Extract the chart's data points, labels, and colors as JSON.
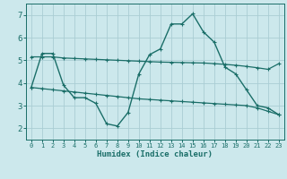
{
  "xlabel": "Humidex (Indice chaleur)",
  "bg_color": "#cce8ec",
  "grid_color": "#aacdd4",
  "line_color": "#1a6e68",
  "xlim": [
    -0.5,
    23.5
  ],
  "ylim": [
    1.5,
    7.5
  ],
  "yticks": [
    2,
    3,
    4,
    5,
    6,
    7
  ],
  "xticks": [
    0,
    1,
    2,
    3,
    4,
    5,
    6,
    7,
    8,
    9,
    10,
    11,
    12,
    13,
    14,
    15,
    16,
    17,
    18,
    19,
    20,
    21,
    22,
    23
  ],
  "line1_x": [
    0,
    1,
    2,
    3,
    4,
    5,
    6,
    7,
    8,
    9,
    10,
    11,
    12,
    13,
    14,
    15,
    16,
    17,
    18,
    19,
    20,
    21,
    22,
    23
  ],
  "line1_y": [
    3.8,
    5.3,
    5.3,
    3.9,
    3.35,
    3.35,
    3.1,
    2.2,
    2.1,
    2.7,
    4.4,
    5.25,
    5.5,
    6.6,
    6.6,
    7.05,
    6.25,
    5.8,
    4.7,
    4.4,
    3.7,
    3.0,
    2.9,
    2.6
  ],
  "line2_x": [
    0,
    1,
    2,
    3,
    4,
    5,
    6,
    7,
    8,
    9,
    10,
    11,
    12,
    13,
    14,
    15,
    16,
    17,
    18,
    19,
    20,
    21,
    22,
    23
  ],
  "line2_y": [
    5.15,
    5.15,
    5.15,
    5.1,
    5.08,
    5.06,
    5.04,
    5.02,
    5.0,
    4.98,
    4.96,
    4.94,
    4.92,
    4.91,
    4.9,
    4.89,
    4.88,
    4.85,
    4.82,
    4.78,
    4.73,
    4.67,
    4.6,
    4.85
  ],
  "line3_x": [
    0,
    1,
    2,
    3,
    4,
    5,
    6,
    7,
    8,
    9,
    10,
    11,
    12,
    13,
    14,
    15,
    16,
    17,
    18,
    19,
    20,
    21,
    22,
    23
  ],
  "line3_y": [
    3.8,
    3.75,
    3.7,
    3.65,
    3.6,
    3.55,
    3.5,
    3.45,
    3.4,
    3.35,
    3.3,
    3.27,
    3.24,
    3.21,
    3.18,
    3.15,
    3.12,
    3.09,
    3.06,
    3.03,
    3.0,
    2.9,
    2.75,
    2.6
  ]
}
